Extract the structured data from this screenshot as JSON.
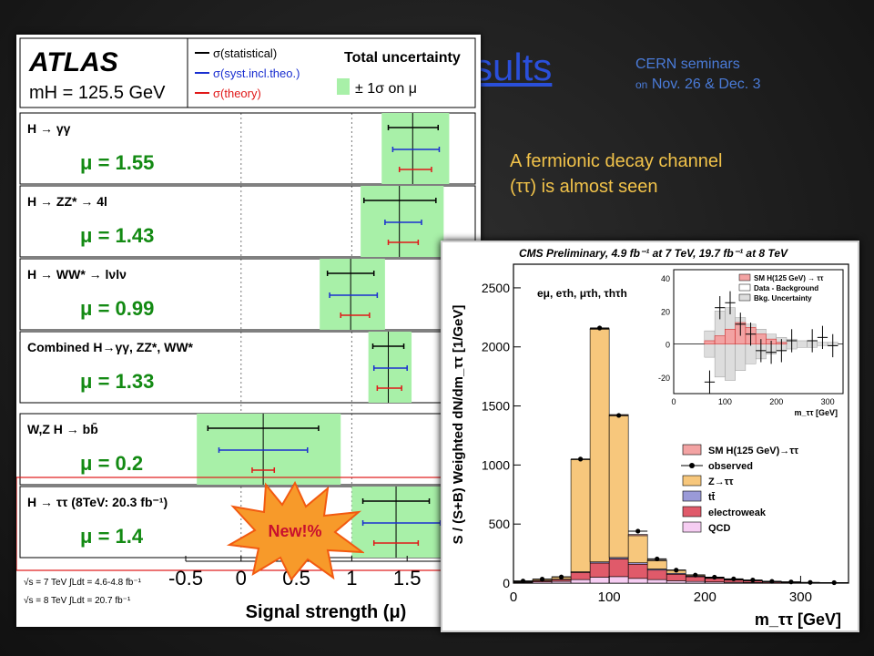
{
  "slide": {
    "title_fragment": "sults",
    "seminars_line1": "CERN seminars",
    "seminars_on": "on",
    "seminars_dates": "Nov. 26 & Dec. 3",
    "fermionic_line1": "A fermionic decay channel",
    "fermionic_line2": "(ττ) is almost seen",
    "new_badge": "New!%"
  },
  "colors": {
    "band_green": "#a8f0a8",
    "stat_black": "#000000",
    "syst_blue": "#1a2fd0",
    "theory_red": "#e01818"
  },
  "chart_data": [
    {
      "type": "scatter",
      "name": "atlas-mu-summary",
      "legend": [
        "σ(statistical)",
        "σ(syst.incl.theo.)",
        "σ(theory)"
      ],
      "legend_right": "Total uncertainty",
      "legend_right_sub": "± 1σ on μ",
      "xlabel": "Signal strength (μ)",
      "xlim": [
        -0.5,
        2.0
      ],
      "xticks": [
        "-0.5",
        "0",
        "0.5",
        "1",
        "1.5"
      ],
      "energy_labels": [
        "√s = 7 TeV ∫Ldt = 4.6-4.8 fb⁻¹",
        "√s = 8 TeV ∫Ldt = 20.7 fb⁻¹"
      ],
      "channels": [
        {
          "label": "H → γγ",
          "mu": "μ = 1.55",
          "mu_val": 1.55,
          "total": [
            0.33,
            0.28
          ],
          "stat": [
            0.23,
            0.22
          ],
          "syst": [
            0.24,
            0.18
          ],
          "theo": [
            0.17,
            0.12
          ]
        },
        {
          "label": "H → ZZ* → 4l",
          "mu": "μ = 1.43",
          "mu_val": 1.43,
          "total": [
            0.4,
            0.35
          ],
          "stat": [
            0.33,
            0.32
          ],
          "syst": [
            0.2,
            0.13
          ],
          "theo": [
            0.17,
            0.1
          ]
        },
        {
          "label": "H → WW* → lνlν",
          "mu": "μ = 0.99",
          "mu_val": 0.99,
          "total": [
            0.31,
            0.28
          ],
          "stat": [
            0.21,
            0.21
          ],
          "syst": [
            0.24,
            0.19
          ],
          "theo": [
            0.17,
            0.09
          ]
        },
        {
          "label": "Combined H→γγ, ZZ*, WW*",
          "mu": "μ = 1.33",
          "mu_val": 1.33,
          "total": [
            0.21,
            0.18
          ],
          "stat": [
            0.14,
            0.14
          ],
          "syst": [
            0.17,
            0.13
          ],
          "theo": [
            0.12,
            0.1
          ]
        },
        {
          "label": "W,Z H → bb̄",
          "mu": "μ = 0.2",
          "mu_val": 0.2,
          "total": [
            0.7,
            0.6
          ],
          "stat": [
            0.5,
            0.5
          ],
          "syst": [
            0.4,
            0.4
          ],
          "theo": [
            0.1,
            0.1
          ]
        },
        {
          "label": "H → ττ (8TeV: 20.3 fb⁻¹)",
          "mu": "μ = 1.4",
          "mu_val": 1.4,
          "total": [
            0.5,
            0.4
          ],
          "stat": [
            0.3,
            0.3
          ],
          "syst": [
            0.4,
            0.3
          ],
          "theo": [
            0.2,
            0.2
          ]
        }
      ]
    },
    {
      "type": "bar",
      "name": "cms-mtautau",
      "title": "CMS Preliminary, 4.9 fb⁻¹ at 7 TeV, 19.7 fb⁻¹ at 8 TeV",
      "xlabel": "m_ττ [GeV]",
      "ylabel": "S / (S+B) Weighted dN/dm_ττ [1/GeV]",
      "xlim": [
        0,
        350
      ],
      "ylim": [
        0,
        2700
      ],
      "yticks": [
        0,
        500,
        1000,
        1500,
        2000,
        2500
      ],
      "xticks": [
        0,
        100,
        200,
        300
      ],
      "channels_label": "eμ, eτh, μτh, τhτh",
      "bin_edges": [
        0,
        20,
        40,
        60,
        80,
        100,
        120,
        140,
        160,
        180,
        200,
        220,
        240,
        260,
        280,
        300,
        320,
        350
      ],
      "series": [
        {
          "name": "QCD",
          "color": "#f6cdf2",
          "values": [
            5,
            10,
            15,
            30,
            50,
            55,
            40,
            30,
            20,
            14,
            10,
            7,
            5,
            3,
            2,
            1,
            1
          ]
        },
        {
          "name": "electroweak",
          "color": "#e05a6a",
          "values": [
            5,
            10,
            15,
            60,
            120,
            150,
            120,
            80,
            55,
            40,
            30,
            20,
            14,
            8,
            6,
            3,
            2
          ]
        },
        {
          "name": "tt̄",
          "color": "#9a9ad8",
          "values": [
            2,
            3,
            4,
            6,
            10,
            12,
            12,
            10,
            8,
            6,
            5,
            4,
            3,
            2,
            2,
            1,
            1
          ]
        },
        {
          "name": "Z→ττ",
          "color": "#f7c77c",
          "values": [
            5,
            10,
            20,
            950,
            1970,
            1200,
            230,
            70,
            25,
            10,
            5,
            3,
            2,
            1,
            1,
            0,
            0
          ]
        },
        {
          "name": "SM H(125 GeV)→ττ",
          "color": "#f3a3a3",
          "values": [
            0,
            0,
            0,
            2,
            5,
            10,
            10,
            6,
            3,
            1,
            0,
            0,
            0,
            0,
            0,
            0,
            0
          ]
        }
      ],
      "observed": [
        18,
        34,
        52,
        1050,
        2160,
        1420,
        440,
        205,
        110,
        68,
        50,
        36,
        26,
        15,
        10,
        6,
        4
      ],
      "legend": [
        "SM H(125 GeV)→ττ",
        "observed",
        "Z→ττ",
        "tt̄",
        "electroweak",
        "QCD"
      ],
      "inset": {
        "legend": [
          "SM H(125 GeV) → ττ",
          "Data - Background",
          "Bkg. Uncertainty"
        ],
        "xlabel": "m_ττ [GeV]",
        "xlim": [
          0,
          330
        ],
        "ylim": [
          -30,
          45
        ],
        "yticks": [
          -20,
          0,
          20,
          40
        ],
        "xticks": [
          0,
          100,
          200,
          300
        ],
        "signal": [
          0,
          0,
          0,
          2,
          5,
          9,
          13,
          10,
          6,
          3,
          1,
          0,
          0,
          0,
          0,
          0
        ],
        "data_minus_bkg": [
          0,
          0,
          0,
          -23,
          22,
          25,
          12,
          6,
          -4,
          -5,
          -4,
          2,
          0,
          2,
          4,
          -1
        ],
        "bkg_uncertainty": [
          0,
          0,
          0,
          8,
          20,
          22,
          16,
          12,
          9,
          6,
          4,
          3,
          2,
          2,
          1,
          1
        ]
      }
    }
  ]
}
